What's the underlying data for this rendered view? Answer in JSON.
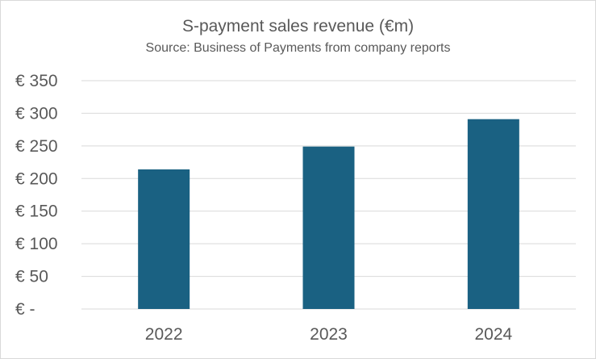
{
  "chart_data": {
    "type": "bar",
    "title": "S-payment sales revenue (€m)",
    "subtitle": "Source: Business of Payments from company reports",
    "categories": [
      "2022",
      "2023",
      "2024"
    ],
    "values": [
      214,
      249,
      291
    ],
    "ylim": [
      0,
      350
    ],
    "yticks": [
      0,
      50,
      100,
      150,
      200,
      250,
      300,
      350
    ],
    "ytick_labels": [
      "€ -",
      "€ 50",
      "€ 100",
      "€ 150",
      "€ 200",
      "€ 250",
      "€ 300",
      "€ 350"
    ],
    "xlabel": "",
    "ylabel": "",
    "grid": true,
    "legend": "none",
    "bar_color": "#1a6182",
    "grid_color": "#d9d9d9"
  }
}
